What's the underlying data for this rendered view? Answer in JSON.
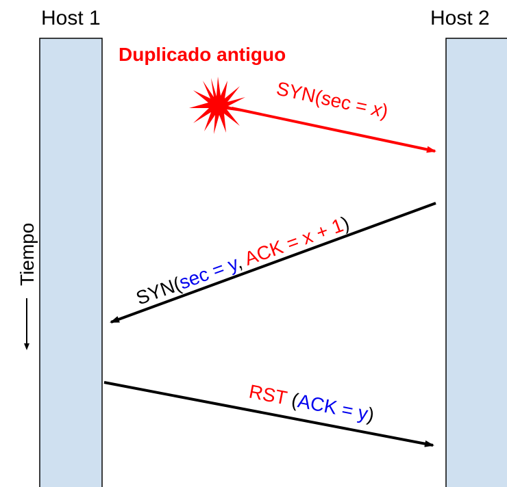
{
  "hosts": {
    "left": "Host 1",
    "right": "Host 2"
  },
  "old_duplicate_label": "Duplicado antiguo",
  "time_label": "Tiempo",
  "messages": {
    "syn_old": {
      "prefix": "SYN(",
      "seq_expr": "sec = ",
      "seq_var": "x",
      "suffix": ")"
    },
    "syn_reply": {
      "prefix": "SYN(",
      "seq_expr": "sec = y",
      "separator": ", ",
      "ack_expr": "ACK = x + 1",
      "suffix": ")"
    },
    "rst": {
      "rst": "RST",
      "open": " (",
      "ack_expr": "ACK = y",
      "suffix": ")"
    }
  },
  "colors": {
    "host_fill": "#cfe0f0",
    "host_stroke": "#000000",
    "red": "#ff0000",
    "blue": "#0000ee",
    "black": "#000000"
  }
}
